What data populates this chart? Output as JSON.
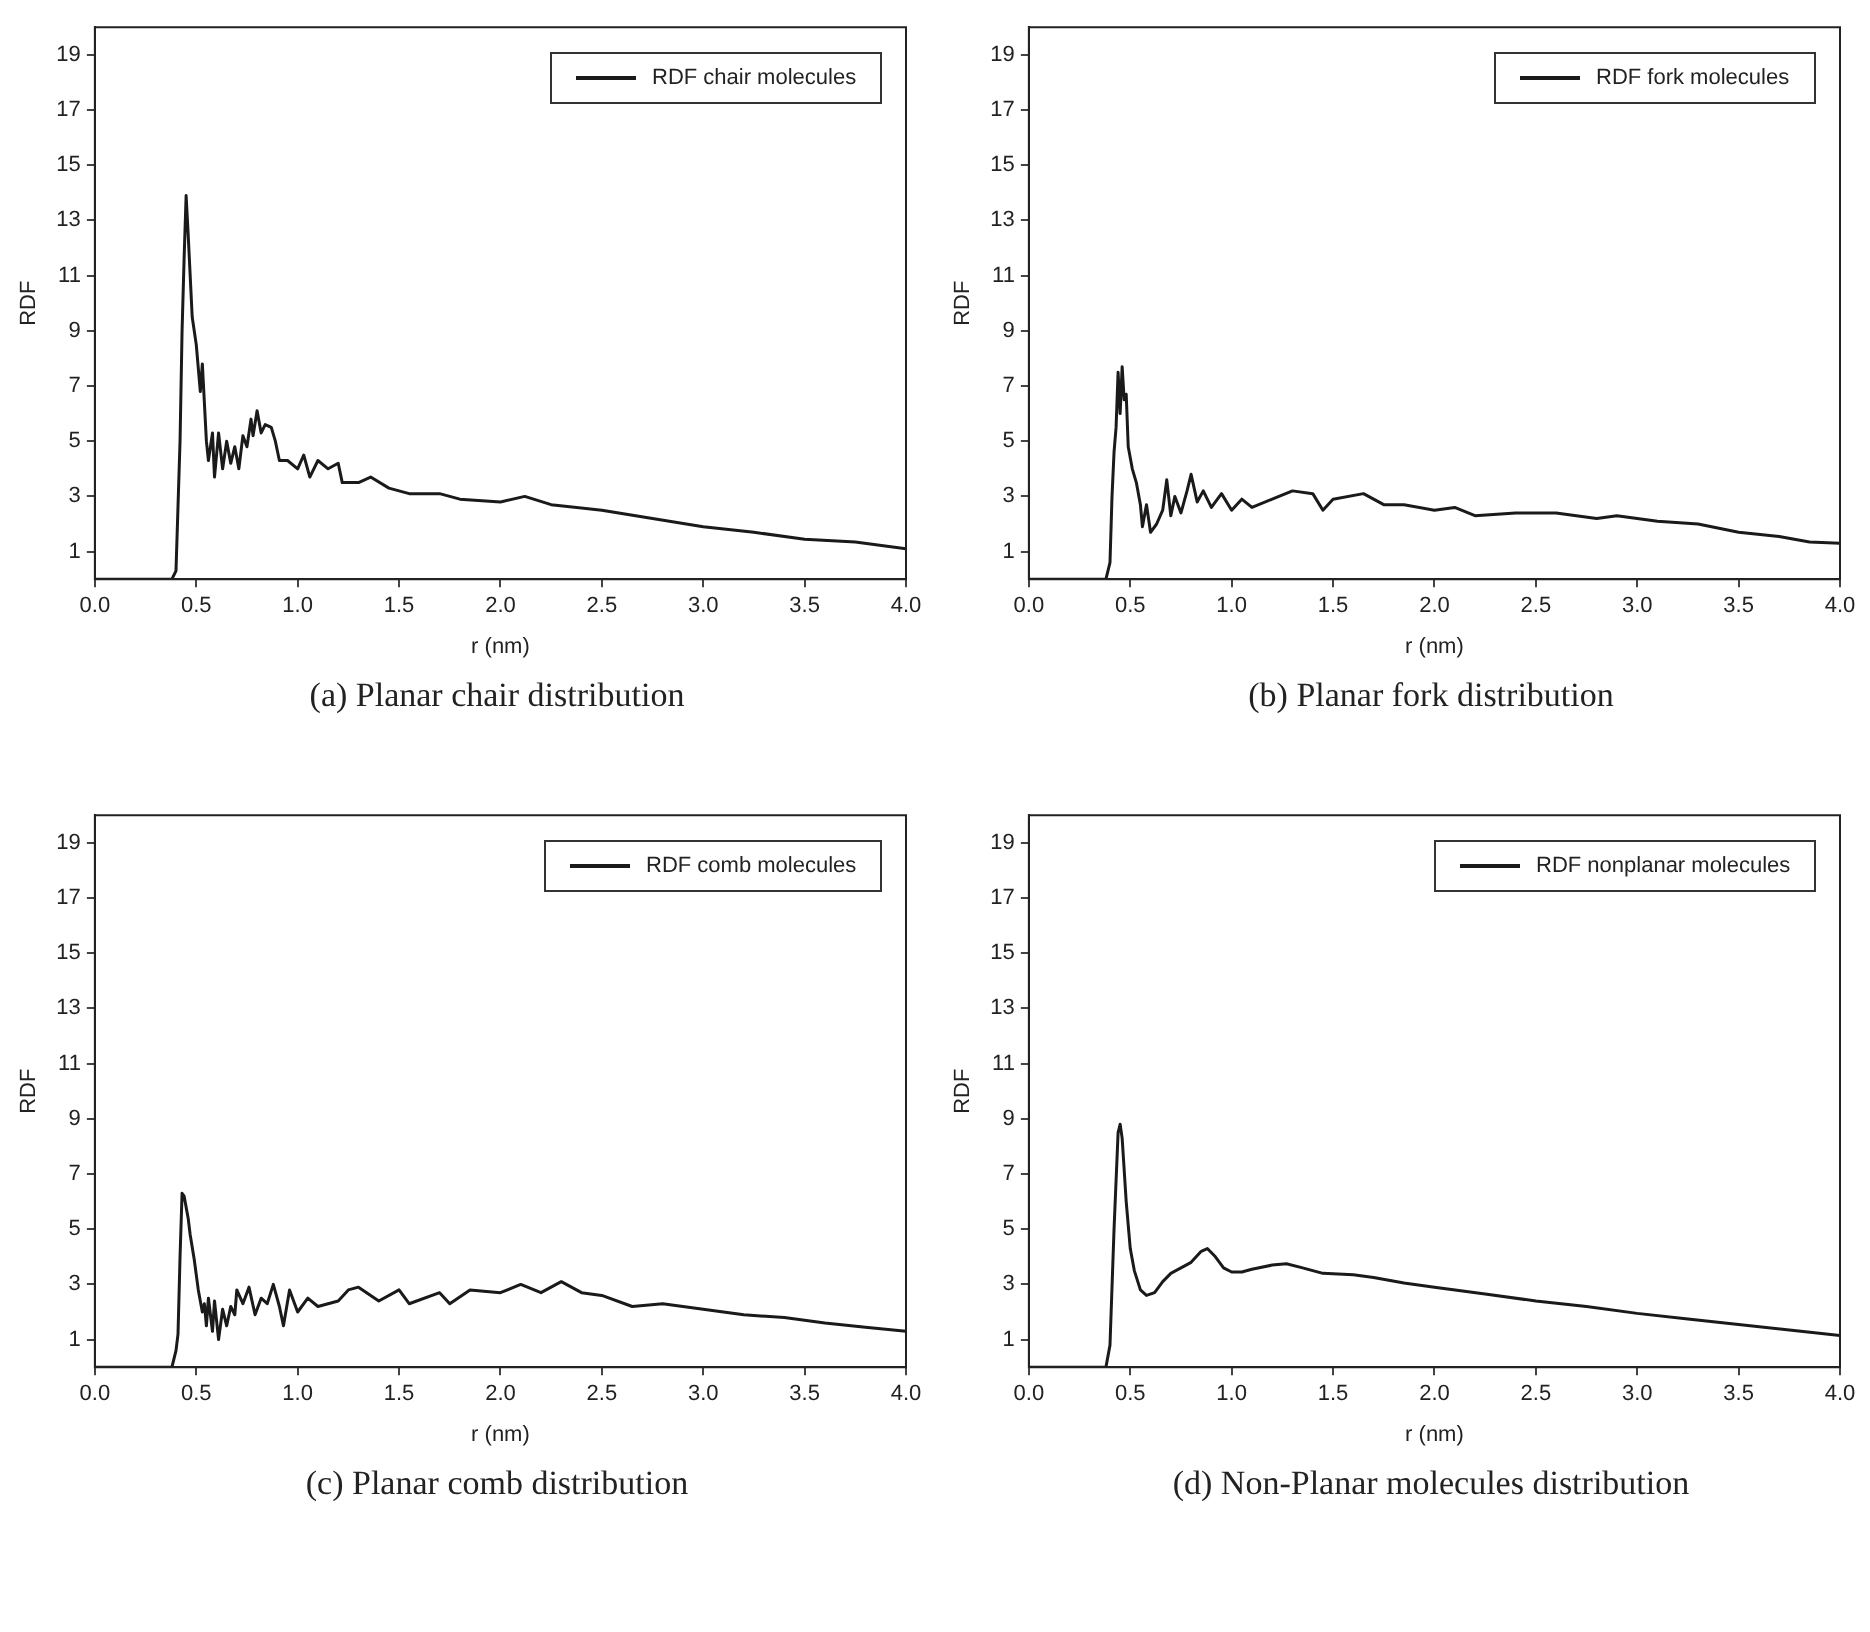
{
  "chart_data": [
    {
      "type": "line",
      "title": "(a) Planar chair distribution",
      "xlabel": "r (nm)",
      "ylabel": "RDF",
      "legend": "top right",
      "xlim": [
        0,
        4
      ],
      "ylim": [
        0,
        20
      ],
      "xticks": [
        {
          "value": 0,
          "label": "0.0"
        },
        {
          "value": 0.5,
          "label": "0.5"
        },
        {
          "value": 1,
          "label": "1.0"
        },
        {
          "value": 1.5,
          "label": "1.5"
        },
        {
          "value": 2,
          "label": "2.0"
        },
        {
          "value": 2.5,
          "label": "2.5"
        },
        {
          "value": 3,
          "label": "3.0"
        },
        {
          "value": 3.5,
          "label": "3.5"
        },
        {
          "value": 4,
          "label": "4.0"
        }
      ],
      "yticks": [
        1,
        3,
        5,
        7,
        9,
        11,
        13,
        15,
        17,
        19
      ],
      "x": [
        0,
        0.38,
        0.4,
        0.42,
        0.43,
        0.44,
        0.45,
        0.46,
        0.47,
        0.48,
        0.5,
        0.52,
        0.53,
        0.55,
        0.56,
        0.58,
        0.59,
        0.61,
        0.63,
        0.65,
        0.67,
        0.69,
        0.71,
        0.73,
        0.75,
        0.77,
        0.78,
        0.8,
        0.82,
        0.84,
        0.87,
        0.89,
        0.91,
        0.95,
        1.0,
        1.03,
        1.06,
        1.1,
        1.15,
        1.2,
        1.22,
        1.3,
        1.36,
        1.45,
        1.55,
        1.7,
        1.8,
        2.0,
        2.12,
        2.25,
        2.5,
        2.75,
        3.0,
        3.25,
        3.5,
        3.75,
        4.0
      ],
      "series": [
        {
          "name": "RDF chair molecules",
          "color": "#1a1a1a",
          "values": [
            0,
            0,
            0.3,
            5,
            9,
            11.6,
            13.9,
            12.5,
            11,
            9.5,
            8.5,
            6.8,
            7.8,
            5,
            4.3,
            5.3,
            3.7,
            5.3,
            4,
            5,
            4.2,
            4.8,
            4,
            5.2,
            4.8,
            5.8,
            5.2,
            6.1,
            5.3,
            5.6,
            5.5,
            5,
            4.3,
            4.3,
            4,
            4.5,
            3.7,
            4.3,
            4,
            4.2,
            3.5,
            3.5,
            3.7,
            3.3,
            3.1,
            3.1,
            2.9,
            2.8,
            3.0,
            2.7,
            2.5,
            2.2,
            1.9,
            1.7,
            1.45,
            1.35,
            1.1
          ]
        }
      ]
    },
    {
      "type": "line",
      "title": "(b) Planar fork distribution",
      "xlabel": "r (nm)",
      "ylabel": "RDF",
      "legend": "top right",
      "xlim": [
        0,
        4
      ],
      "ylim": [
        0,
        20
      ],
      "xticks": [
        {
          "value": 0,
          "label": "0.0"
        },
        {
          "value": 0.5,
          "label": "0.5"
        },
        {
          "value": 1,
          "label": "1.0"
        },
        {
          "value": 1.5,
          "label": "1.5"
        },
        {
          "value": 2,
          "label": "2.0"
        },
        {
          "value": 2.5,
          "label": "2.5"
        },
        {
          "value": 3,
          "label": "3.0"
        },
        {
          "value": 3.5,
          "label": "3.5"
        },
        {
          "value": 4,
          "label": "4.0"
        }
      ],
      "yticks": [
        1,
        3,
        5,
        7,
        9,
        11,
        13,
        15,
        17,
        19
      ],
      "x": [
        0,
        0.38,
        0.4,
        0.41,
        0.42,
        0.43,
        0.44,
        0.45,
        0.46,
        0.47,
        0.48,
        0.49,
        0.51,
        0.53,
        0.55,
        0.56,
        0.58,
        0.6,
        0.63,
        0.66,
        0.68,
        0.7,
        0.72,
        0.75,
        0.78,
        0.8,
        0.83,
        0.86,
        0.9,
        0.95,
        1.0,
        1.05,
        1.1,
        1.2,
        1.3,
        1.4,
        1.45,
        1.5,
        1.65,
        1.75,
        1.85,
        2.0,
        2.1,
        2.2,
        2.4,
        2.6,
        2.8,
        2.9,
        3.1,
        3.3,
        3.5,
        3.7,
        3.85,
        4.0
      ],
      "series": [
        {
          "name": "RDF fork molecules",
          "color": "#1a1a1a",
          "values": [
            0,
            0,
            0.6,
            3,
            4.6,
            5.5,
            7.5,
            6,
            7.7,
            6.5,
            6.7,
            4.8,
            4,
            3.5,
            2.7,
            1.9,
            2.7,
            1.7,
            2,
            2.5,
            3.6,
            2.3,
            3,
            2.4,
            3.2,
            3.8,
            2.8,
            3.2,
            2.6,
            3.1,
            2.5,
            2.9,
            2.6,
            2.9,
            3.2,
            3.1,
            2.5,
            2.9,
            3.1,
            2.7,
            2.7,
            2.5,
            2.6,
            2.3,
            2.4,
            2.4,
            2.2,
            2.3,
            2.1,
            2.0,
            1.7,
            1.55,
            1.35,
            1.3
          ]
        }
      ]
    },
    {
      "type": "line",
      "title": "(c) Planar comb distribution",
      "xlabel": "r (nm)",
      "ylabel": "RDF",
      "legend": "top right",
      "xlim": [
        0,
        4
      ],
      "ylim": [
        0,
        20
      ],
      "xticks": [
        {
          "value": 0,
          "label": "0.0"
        },
        {
          "value": 0.5,
          "label": "0.5"
        },
        {
          "value": 1,
          "label": "1.0"
        },
        {
          "value": 1.5,
          "label": "1.5"
        },
        {
          "value": 2,
          "label": "2.0"
        },
        {
          "value": 2.5,
          "label": "2.5"
        },
        {
          "value": 3,
          "label": "3.0"
        },
        {
          "value": 3.5,
          "label": "3.5"
        },
        {
          "value": 4,
          "label": "4.0"
        }
      ],
      "yticks": [
        1,
        3,
        5,
        7,
        9,
        11,
        13,
        15,
        17,
        19
      ],
      "x": [
        0,
        0.38,
        0.4,
        0.41,
        0.42,
        0.43,
        0.44,
        0.46,
        0.47,
        0.49,
        0.51,
        0.53,
        0.54,
        0.55,
        0.56,
        0.58,
        0.59,
        0.61,
        0.63,
        0.65,
        0.67,
        0.69,
        0.7,
        0.73,
        0.76,
        0.79,
        0.82,
        0.85,
        0.88,
        0.91,
        0.93,
        0.96,
        1.0,
        1.05,
        1.1,
        1.2,
        1.25,
        1.3,
        1.4,
        1.5,
        1.55,
        1.7,
        1.75,
        1.85,
        2.0,
        2.1,
        2.2,
        2.3,
        2.4,
        2.5,
        2.65,
        2.8,
        3.0,
        3.2,
        3.4,
        3.6,
        3.8,
        4.0
      ],
      "series": [
        {
          "name": "RDF comb molecules",
          "color": "#1a1a1a",
          "values": [
            0,
            0,
            0.6,
            1.2,
            4,
            6.3,
            6.2,
            5.4,
            4.8,
            3.9,
            2.8,
            2,
            2.3,
            1.5,
            2.5,
            1.3,
            2.4,
            1,
            2.1,
            1.5,
            2.2,
            1.9,
            2.8,
            2.3,
            2.9,
            1.9,
            2.5,
            2.3,
            3,
            2.2,
            1.5,
            2.8,
            2,
            2.5,
            2.2,
            2.4,
            2.8,
            2.9,
            2.4,
            2.8,
            2.3,
            2.7,
            2.3,
            2.8,
            2.7,
            3.0,
            2.7,
            3.1,
            2.7,
            2.6,
            2.2,
            2.3,
            2.1,
            1.9,
            1.8,
            1.6,
            1.45,
            1.3
          ]
        }
      ]
    },
    {
      "type": "line",
      "title": "(d) Non-Planar molecules distribution",
      "xlabel": "r (nm)",
      "ylabel": "RDF",
      "legend": "top right",
      "xlim": [
        0,
        4
      ],
      "ylim": [
        0,
        20
      ],
      "xticks": [
        {
          "value": 0,
          "label": "0.0"
        },
        {
          "value": 0.5,
          "label": "0.5"
        },
        {
          "value": 1,
          "label": "1.0"
        },
        {
          "value": 1.5,
          "label": "1.5"
        },
        {
          "value": 2,
          "label": "2.0"
        },
        {
          "value": 2.5,
          "label": "2.5"
        },
        {
          "value": 3,
          "label": "3.0"
        },
        {
          "value": 3.5,
          "label": "3.5"
        },
        {
          "value": 4,
          "label": "4.0"
        }
      ],
      "yticks": [
        1,
        3,
        5,
        7,
        9,
        11,
        13,
        15,
        17,
        19
      ],
      "x": [
        0,
        0.38,
        0.4,
        0.42,
        0.44,
        0.45,
        0.46,
        0.48,
        0.5,
        0.52,
        0.55,
        0.58,
        0.62,
        0.66,
        0.7,
        0.75,
        0.8,
        0.85,
        0.88,
        0.92,
        0.96,
        1.0,
        1.05,
        1.1,
        1.2,
        1.27,
        1.35,
        1.45,
        1.6,
        1.7,
        1.85,
        2.0,
        2.25,
        2.5,
        2.75,
        3.0,
        3.25,
        3.5,
        3.75,
        4.0
      ],
      "series": [
        {
          "name": "RDF nonplanar molecules",
          "color": "#1a1a1a",
          "values": [
            0,
            0,
            0.8,
            5,
            8.5,
            8.8,
            8.3,
            6,
            4.3,
            3.5,
            2.8,
            2.6,
            2.7,
            3.1,
            3.4,
            3.6,
            3.8,
            4.2,
            4.3,
            4,
            3.6,
            3.45,
            3.45,
            3.55,
            3.7,
            3.75,
            3.6,
            3.4,
            3.35,
            3.25,
            3.05,
            2.9,
            2.65,
            2.4,
            2.2,
            1.95,
            1.75,
            1.55,
            1.35,
            1.15
          ]
        }
      ]
    }
  ]
}
